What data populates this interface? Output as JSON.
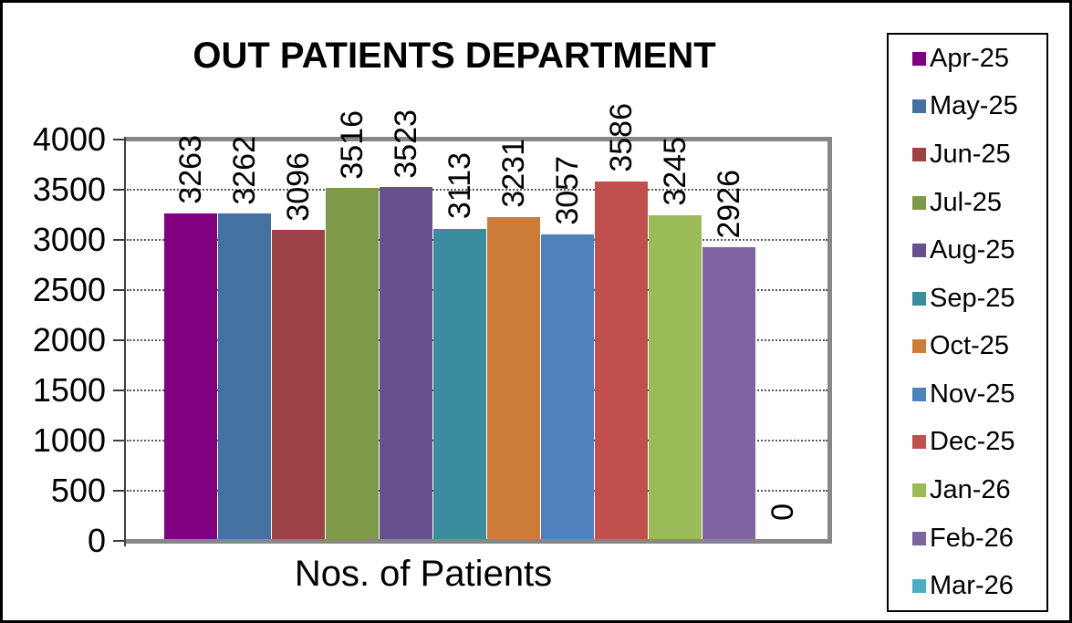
{
  "chart_data": {
    "type": "bar",
    "title": "OUT PATIENTS DEPARTMENT",
    "xlabel": "Nos. of Patients",
    "ylabel": "",
    "categories": [
      "Apr-25",
      "May-25",
      "Jun-25",
      "Jul-25",
      "Aug-25",
      "Sep-25",
      "Oct-25",
      "Nov-25",
      "Dec-25",
      "Jan-26",
      "Feb-26",
      "Mar-26"
    ],
    "values": [
      3263,
      3262,
      3096,
      3516,
      3523,
      3113,
      3231,
      3057,
      3586,
      3245,
      2926,
      0
    ],
    "colors": [
      "#800180",
      "#44719F",
      "#9E4345",
      "#7E9A49",
      "#67508F",
      "#3C8CA0",
      "#CC7C38",
      "#4F81BD",
      "#C0504D",
      "#9BBB59",
      "#8064A2",
      "#4BACC6"
    ],
    "ylim": [
      0,
      4000
    ],
    "yticks": [
      0,
      500,
      1000,
      1500,
      2000,
      2500,
      3000,
      3500,
      4000
    ],
    "grid": "horizontal-dotted",
    "grid_color": "#595959",
    "plot_border_color": "#878787",
    "axis_color": "#3F3F3F",
    "legend_position": "right",
    "data_labels": {
      "position": "outside-end",
      "rotation": -90
    }
  }
}
